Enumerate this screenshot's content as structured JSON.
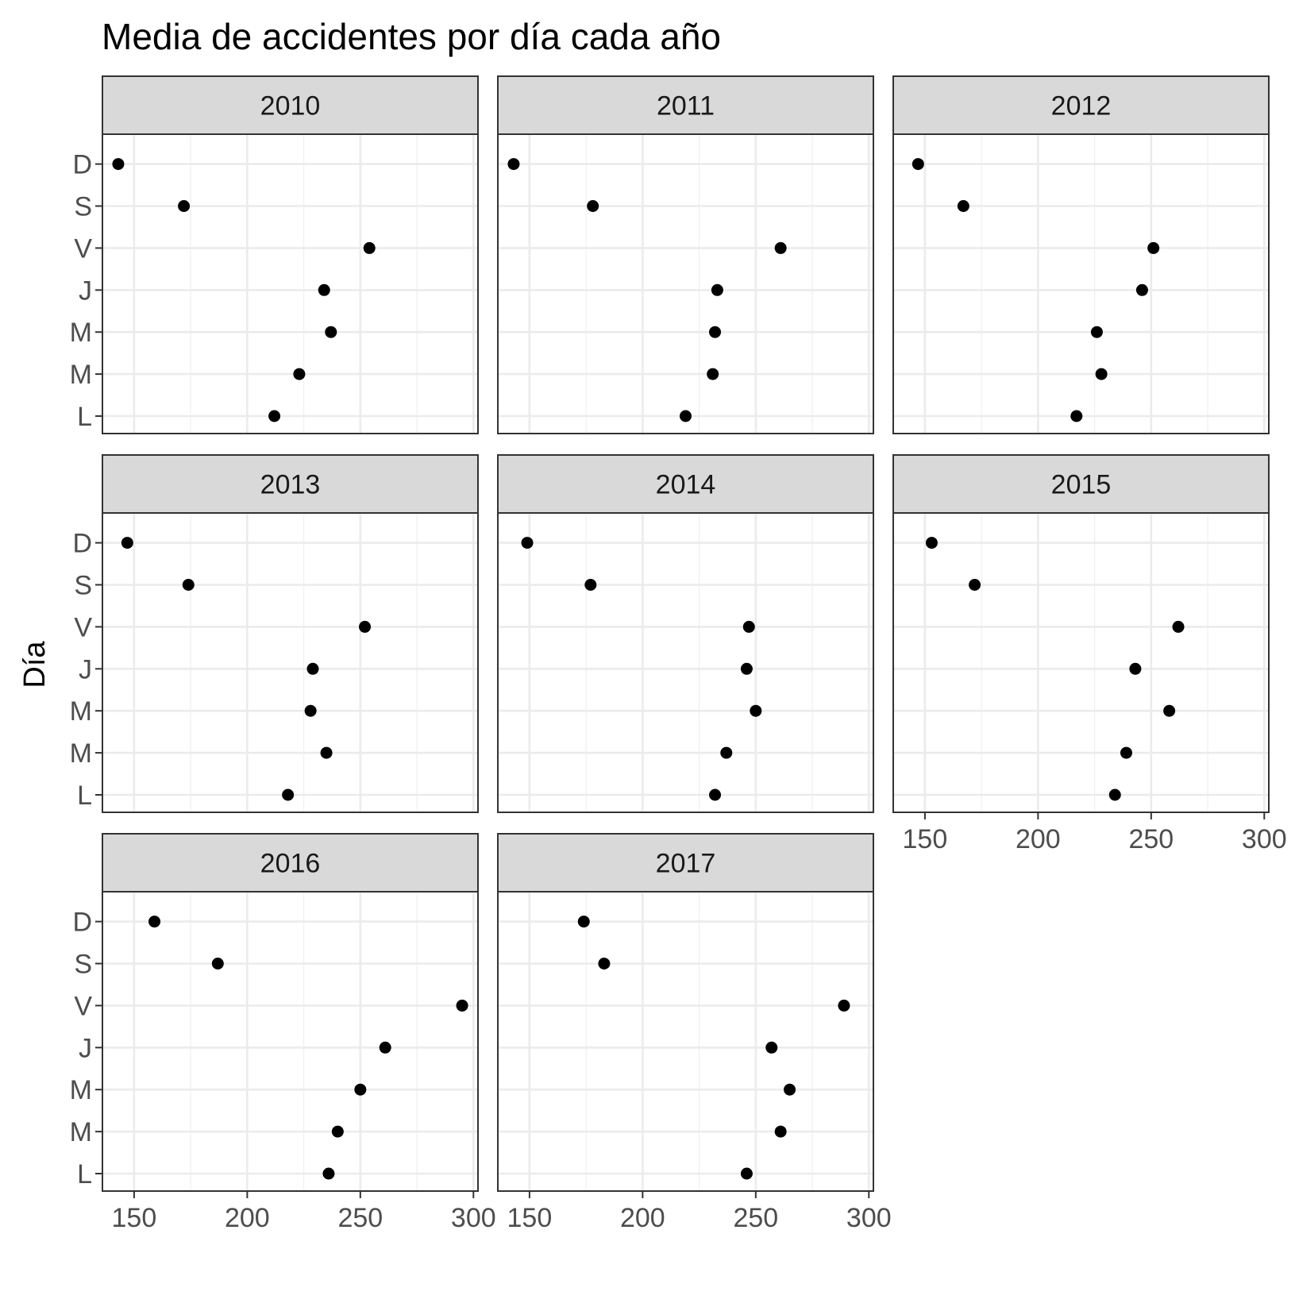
{
  "chart_data": {
    "type": "scatter",
    "title": "Media de accidentes por día cada año",
    "xlabel": "",
    "ylabel": "Día",
    "xlim": [
      136,
      302
    ],
    "x_ticks": [
      150,
      200,
      250,
      300
    ],
    "grid": true,
    "y_categories": [
      "L",
      "M",
      "M",
      "J",
      "V",
      "S",
      "D"
    ],
    "point_color": "#000000",
    "panels": [
      {
        "name": "2010",
        "values": [
          212,
          223,
          237,
          234,
          254,
          172,
          143
        ]
      },
      {
        "name": "2011",
        "values": [
          219,
          231,
          232,
          233,
          261,
          178,
          143
        ]
      },
      {
        "name": "2012",
        "values": [
          217,
          228,
          226,
          246,
          251,
          167,
          147
        ]
      },
      {
        "name": "2013",
        "values": [
          218,
          235,
          228,
          229,
          252,
          174,
          147
        ]
      },
      {
        "name": "2014",
        "values": [
          232,
          237,
          250,
          246,
          247,
          177,
          149
        ]
      },
      {
        "name": "2015",
        "values": [
          234,
          239,
          258,
          243,
          262,
          172,
          153
        ]
      },
      {
        "name": "2016",
        "values": [
          236,
          240,
          250,
          261,
          295,
          187,
          159
        ]
      },
      {
        "name": "2017",
        "values": [
          246,
          261,
          265,
          257,
          289,
          183,
          174
        ]
      }
    ]
  }
}
